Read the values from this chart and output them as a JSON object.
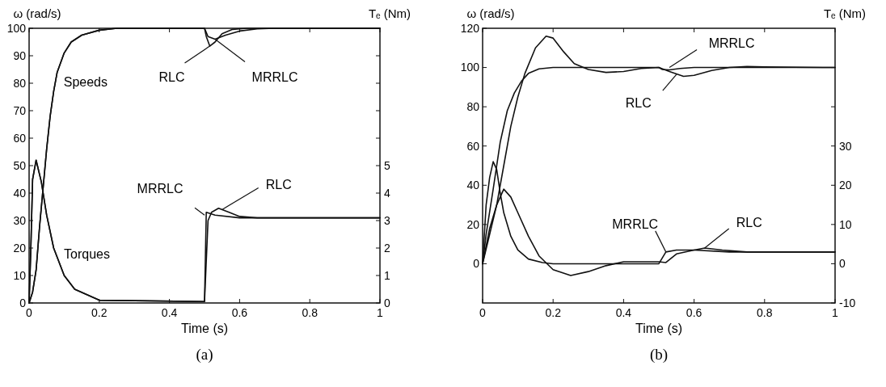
{
  "chart_data": [
    {
      "type": "line",
      "xlabel": "Time (s)",
      "ylabel": "ω (rad/s)",
      "y2label": "Tₑ (Nm)",
      "xlim": [
        0,
        1
      ],
      "xticks": [
        0,
        0.2,
        0.4,
        0.6,
        0.8,
        1
      ],
      "ylim": [
        0,
        100
      ],
      "yticks": [
        0,
        10,
        20,
        30,
        40,
        50,
        60,
        70,
        80,
        90,
        100
      ],
      "y2lim": [
        0,
        10
      ],
      "y2ticks": [
        0,
        1,
        2,
        3,
        4,
        5,
        {
          "value": 6,
          "label": null
        },
        {
          "value": 7,
          "label": null
        },
        {
          "value": 8,
          "label": null
        },
        {
          "value": 9,
          "label": null
        }
      ],
      "series": [
        {
          "color": "#111111",
          "x": [
            0,
            0.01,
            0.02,
            0.03,
            0.04,
            0.05,
            0.06,
            0.07,
            0.08,
            0.1,
            0.12,
            0.15,
            0.2,
            0.25,
            0.5,
            0.505,
            0.515,
            0.53,
            0.55,
            0.58,
            0.62,
            1
          ],
          "values": [
            0,
            4,
            12,
            28,
            42,
            56,
            68,
            77,
            84,
            91,
            95,
            97.5,
            99.3,
            100,
            100,
            97,
            93.5,
            95,
            98,
            99.6,
            100,
            100
          ]
        },
        {
          "color": "#111111",
          "x": [
            0,
            0.01,
            0.02,
            0.03,
            0.04,
            0.05,
            0.06,
            0.07,
            0.08,
            0.1,
            0.12,
            0.15,
            0.2,
            0.25,
            0.5,
            0.51,
            0.53,
            0.56,
            0.6,
            0.65,
            0.7,
            1
          ],
          "values": [
            0,
            4,
            12,
            28,
            42,
            56,
            68,
            77,
            84,
            91,
            95,
            97.5,
            99.3,
            100,
            100,
            97,
            96,
            97.5,
            99,
            99.8,
            100,
            100
          ]
        },
        {
          "color": "#111111",
          "axis": "y2",
          "x": [
            0,
            0.005,
            0.01,
            0.02,
            0.035,
            0.05,
            0.07,
            0.1,
            0.13,
            0.2,
            0.5,
            0.51,
            0.52,
            0.54,
            0.57,
            0.6,
            0.65,
            1
          ],
          "values": [
            0,
            2,
            4.5,
            5.2,
            4.4,
            3.2,
            2,
            1,
            0.5,
            0.1,
            0.05,
            3,
            3.3,
            3.45,
            3.3,
            3.15,
            3.1,
            3.1
          ]
        },
        {
          "color": "#111111",
          "axis": "y2",
          "x": [
            0,
            0.005,
            0.01,
            0.02,
            0.035,
            0.05,
            0.07,
            0.1,
            0.13,
            0.2,
            0.5,
            0.505,
            0.53,
            0.6,
            1
          ],
          "values": [
            0,
            2,
            4.5,
            5.2,
            4.4,
            3.2,
            2,
            1,
            0.5,
            0.1,
            0.05,
            3.3,
            3.2,
            3.1,
            3.1
          ]
        }
      ],
      "annotations": [
        {
          "text": "Speeds",
          "x": 0.08,
          "y": 84
        },
        {
          "text": "Torques",
          "x": 0.09,
          "y": 13
        },
        {
          "text": "RLC",
          "x": 0.515,
          "y": 93.5
        },
        {
          "text": "MRRLC",
          "x": 0.53,
          "y": 96
        },
        {
          "text": "MRRLC",
          "x": 0.5,
          "y": 32
        },
        {
          "text": "RLC",
          "x": 0.55,
          "y": 34
        },
        "(a)"
      ]
    },
    {
      "type": "line",
      "xlabel": "Time (s)",
      "ylabel": "ω (rad/s)",
      "y2label": "Tₑ (Nm)",
      "xlim": [
        0,
        1
      ],
      "xticks": [
        0,
        0.2,
        0.4,
        0.6,
        0.8,
        1
      ],
      "ylim": [
        -20,
        120
      ],
      "yticks": [
        0,
        20,
        40,
        60,
        80,
        100,
        120
      ],
      "y2lim": [
        -10,
        60
      ],
      "y2ticks": [
        -10,
        0,
        10,
        20,
        30,
        {
          "value": 40,
          "label": null
        },
        {
          "value": 50,
          "label": null
        }
      ],
      "series": [
        {
          "color": "#111111",
          "x": [
            0,
            0.02,
            0.04,
            0.06,
            0.08,
            0.1,
            0.12,
            0.15,
            0.18,
            0.2,
            0.23,
            0.26,
            0.3,
            0.35,
            0.4,
            0.45,
            0.5,
            0.53,
            0.57,
            0.6,
            0.65,
            0.7,
            0.75,
            0.8,
            1
          ],
          "values": [
            0,
            15,
            30,
            50,
            70,
            85,
            97,
            110,
            116,
            115,
            108,
            102,
            99,
            97.5,
            98,
            99.5,
            100,
            98,
            95.5,
            96,
            98.5,
            100,
            100.5,
            100.3,
            100
          ]
        },
        {
          "color": "#111111",
          "x": [
            0,
            0.01,
            0.03,
            0.05,
            0.07,
            0.09,
            0.11,
            0.13,
            0.16,
            0.2,
            0.5,
            0.51,
            0.53,
            0.56,
            0.6,
            1
          ],
          "values": [
            0,
            15,
            38,
            62,
            78,
            87,
            93,
            97,
            99.3,
            100,
            100,
            99,
            98.8,
            99.5,
            100,
            100
          ]
        },
        {
          "color": "#111111",
          "axis": "y2",
          "x": [
            0,
            0.02,
            0.04,
            0.06,
            0.08,
            0.1,
            0.13,
            0.16,
            0.2,
            0.25,
            0.3,
            0.35,
            0.4,
            0.5,
            0.52,
            0.55,
            0.6,
            0.63,
            0.68,
            0.75,
            1
          ],
          "values": [
            0,
            9,
            15,
            19,
            17,
            13,
            7,
            2,
            -1.5,
            -3,
            -2,
            -0.5,
            0.5,
            0.5,
            0.3,
            2.5,
            3.5,
            4,
            3.5,
            3,
            3
          ]
        },
        {
          "color": "#111111",
          "axis": "y2",
          "x": [
            0,
            0.01,
            0.02,
            0.03,
            0.04,
            0.05,
            0.06,
            0.08,
            0.1,
            0.13,
            0.17,
            0.2,
            0.5,
            0.51,
            0.52,
            0.55,
            0.6,
            0.7,
            1
          ],
          "values": [
            0,
            15,
            22,
            26,
            24,
            18,
            13,
            7,
            3.5,
            1.2,
            0.3,
            0,
            0,
            1.5,
            3,
            3.5,
            3.5,
            3,
            3
          ]
        }
      ],
      "annotations": [
        {
          "text": "MRRLC",
          "x": 0.53,
          "y": 100
        },
        {
          "text": "RLC",
          "x": 0.55,
          "y": 96.5
        },
        {
          "text": "MRRLC",
          "x": 0.52,
          "y": 6
        },
        {
          "text": "RLC",
          "x": 0.63,
          "y": 8
        },
        "(b)"
      ]
    }
  ]
}
